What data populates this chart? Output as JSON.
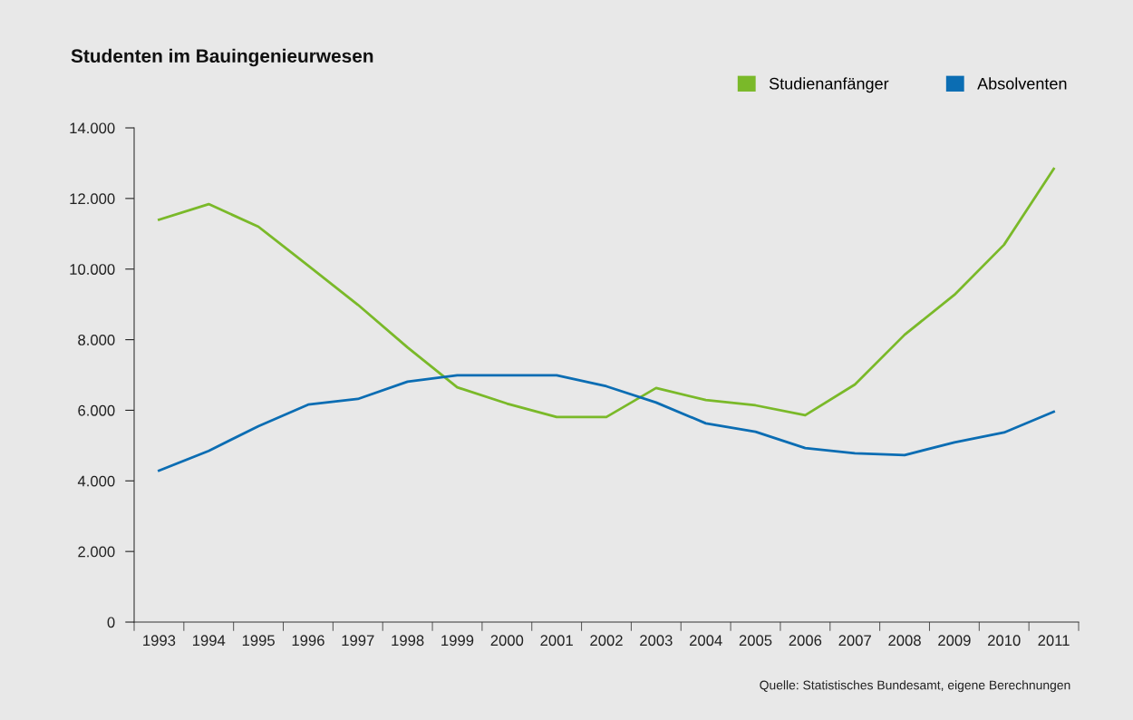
{
  "chart_data": {
    "type": "line",
    "title": "Studenten im Bauingenieurwesen",
    "categories": [
      "1993",
      "1994",
      "1995",
      "1996",
      "1997",
      "1998",
      "1999",
      "2000",
      "2001",
      "2002",
      "2003",
      "2004",
      "2005",
      "2006",
      "2007",
      "2008",
      "2009",
      "2010",
      "2011"
    ],
    "series": [
      {
        "name": "Studienanfänger",
        "color": "#7ab929",
        "values": [
          11400,
          11840,
          11200,
          10100,
          8990,
          7780,
          6650,
          6190,
          5810,
          5810,
          6630,
          6290,
          6140,
          5860,
          6730,
          8140,
          9270,
          10690,
          12840
        ]
      },
      {
        "name": "Absolventen",
        "color": "#0b6db3",
        "values": [
          4290,
          4850,
          5550,
          6160,
          6320,
          6810,
          6990,
          6990,
          6990,
          6680,
          6220,
          5630,
          5390,
          4930,
          4780,
          4730,
          5090,
          5370,
          5960
        ]
      }
    ],
    "ylim": [
      0,
      14000
    ],
    "yticks": [
      {
        "value": 0,
        "label": "0"
      },
      {
        "value": 2000,
        "label": "2.000"
      },
      {
        "value": 4000,
        "label": "4.000"
      },
      {
        "value": 6000,
        "label": "6.000"
      },
      {
        "value": 8000,
        "label": "8.000"
      },
      {
        "value": 10000,
        "label": "10.000"
      },
      {
        "value": 12000,
        "label": "12.000"
      },
      {
        "value": 14000,
        "label": "14.000"
      }
    ],
    "grid": false,
    "legend": "top right",
    "marker": "none",
    "line_style": "solid",
    "annotations": [
      "Quelle: Statistisches Bundesamt, eigene Berechnungen"
    ]
  }
}
